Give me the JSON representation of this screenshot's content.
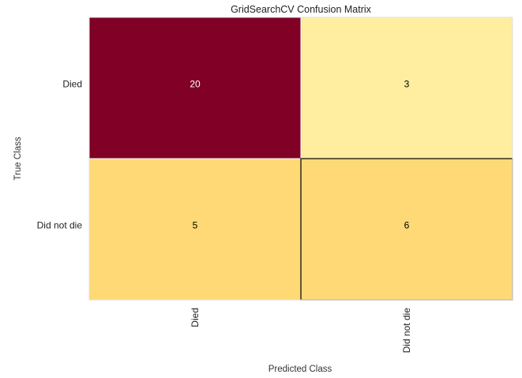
{
  "chart_data": {
    "type": "heatmap",
    "title": "GridSearchCV Confusion Matrix",
    "xlabel": "Predicted Class",
    "ylabel": "True Class",
    "x_categories": [
      "Died",
      "Did not die"
    ],
    "y_categories": [
      "Died",
      "Did not die"
    ],
    "values": [
      [
        20,
        3
      ],
      [
        5,
        6
      ]
    ],
    "cell_colors": [
      [
        "#800026",
        "#ffeda0"
      ],
      [
        "#fed976",
        "#fed976"
      ]
    ],
    "text_colors": [
      [
        "#ffffff",
        "#000000"
      ],
      [
        "#000000",
        "#000000"
      ]
    ],
    "highlighted_cell": [
      1,
      1
    ]
  }
}
